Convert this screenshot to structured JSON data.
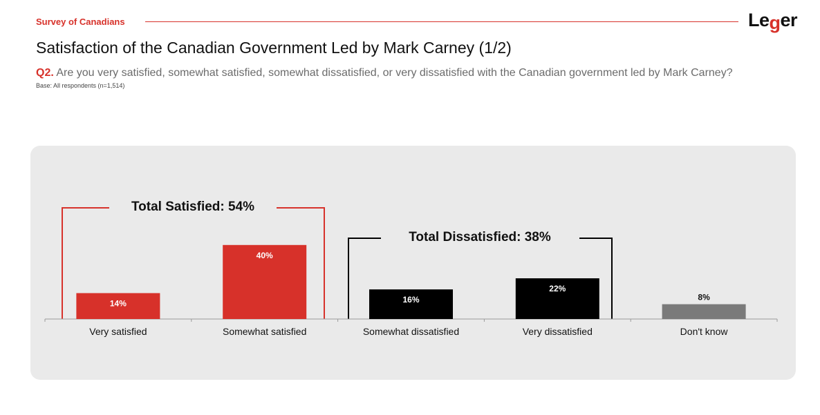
{
  "header": {
    "kicker": "Survey of Canadians",
    "logo_text": "Leger",
    "title": "Satisfaction of the Canadian Government Led by Mark Carney (1/2)",
    "question_number": "Q2.",
    "question_text": "Are you very satisfied, somewhat satisfied, somewhat dissatisfied, or very dissatisfied with the Canadian government led by Mark Carney?",
    "base_note": "Base: All respondents (n=1,514)"
  },
  "colors": {
    "accent_red": "#d7312a",
    "black": "#000000",
    "grey_bar": "#7a7a7a",
    "panel_bg": "#eaeaea"
  },
  "brackets": {
    "satisfied": "Total Satisfied: 54%",
    "dissatisfied": "Total Dissatisfied: 38%"
  },
  "chart_data": {
    "type": "bar",
    "title": "",
    "xlabel": "",
    "ylabel": "",
    "categories": [
      "Very satisfied",
      "Somewhat satisfied",
      "Somewhat dissatisfied",
      "Very dissatisfied",
      "Don't know"
    ],
    "values": [
      14,
      40,
      16,
      22,
      8
    ],
    "data_labels": [
      "14%",
      "40%",
      "16%",
      "22%",
      "8%"
    ],
    "bar_colors": [
      "#d7312a",
      "#d7312a",
      "#000000",
      "#000000",
      "#7a7a7a"
    ],
    "ylim": [
      0,
      54
    ],
    "grid": false,
    "legend": "none"
  }
}
